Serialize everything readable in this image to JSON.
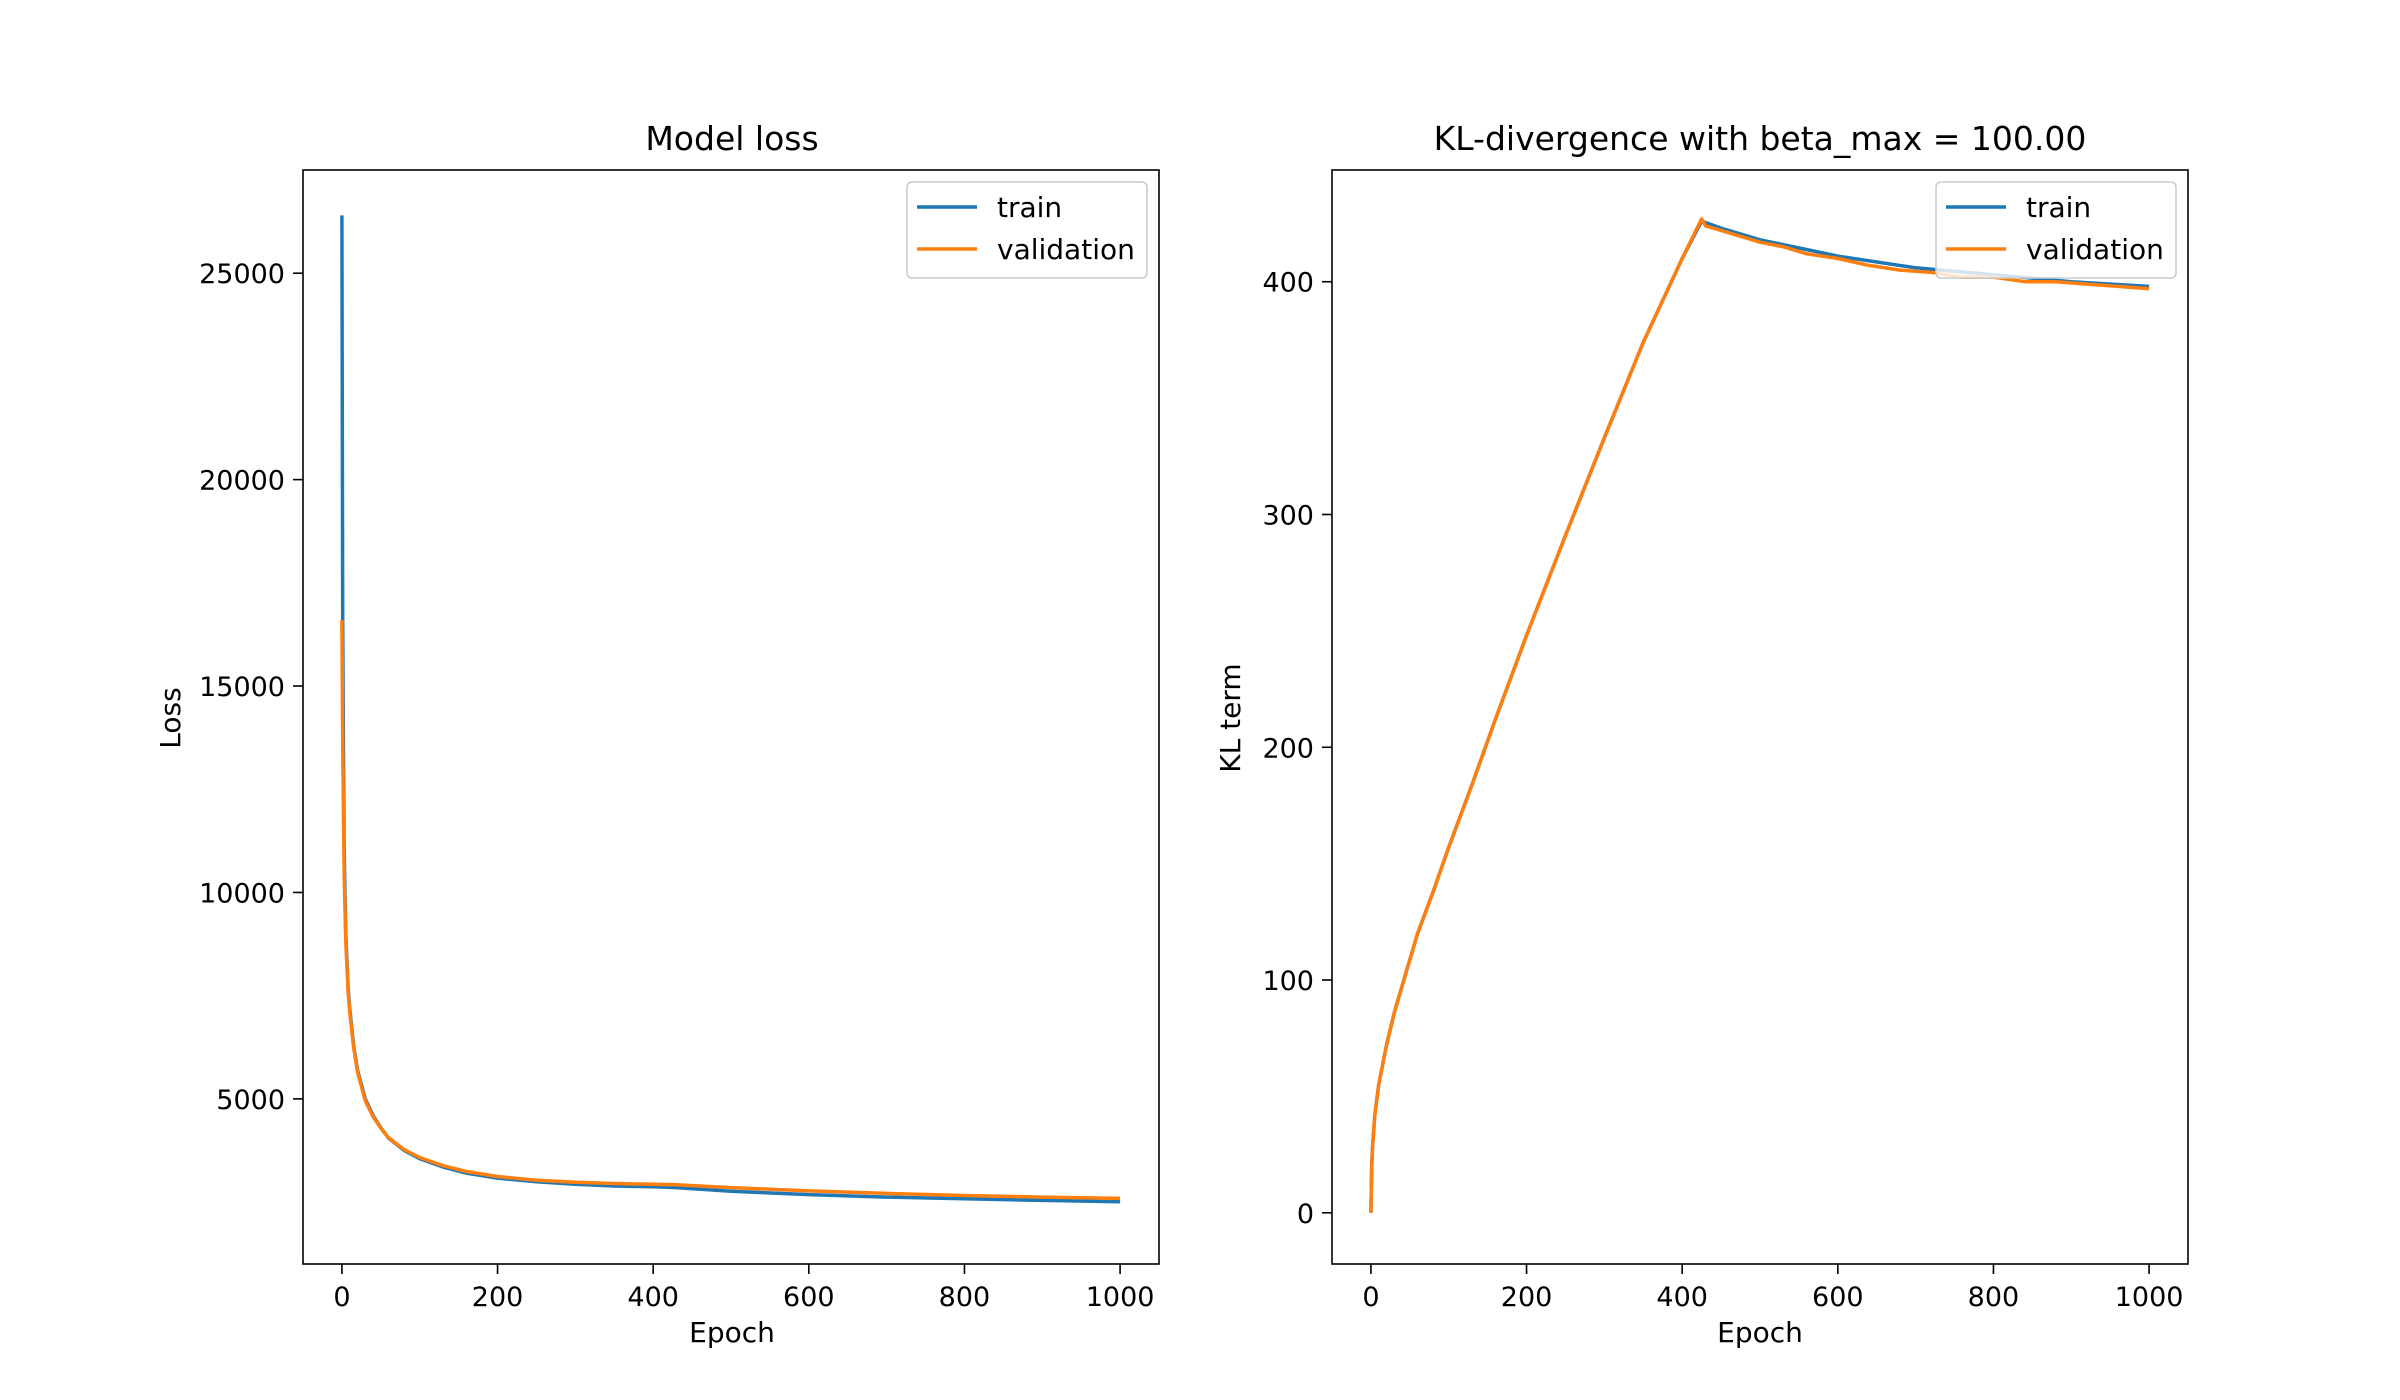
{
  "chart_data": [
    {
      "type": "line",
      "title": "Model loss",
      "xlabel": "Epoch",
      "ylabel": "Loss",
      "xlim": [
        -50,
        1050
      ],
      "ylim": [
        1000,
        27500
      ],
      "xticks": [
        0,
        200,
        400,
        600,
        800,
        1000
      ],
      "yticks": [
        5000,
        10000,
        15000,
        20000,
        25000
      ],
      "legend": "top-right",
      "grid": false,
      "series": [
        {
          "name": "train",
          "color": "#1f77b4",
          "x": [
            0,
            1,
            2,
            3,
            5,
            8,
            10,
            15,
            20,
            30,
            40,
            50,
            60,
            80,
            100,
            130,
            160,
            200,
            250,
            300,
            350,
            400,
            430,
            500,
            600,
            700,
            800,
            900,
            1000
          ],
          "y": [
            26400,
            16600,
            13200,
            11000,
            9000,
            7700,
            7200,
            6300,
            5700,
            5000,
            4600,
            4300,
            4050,
            3750,
            3550,
            3350,
            3200,
            3080,
            2990,
            2930,
            2890,
            2870,
            2850,
            2760,
            2680,
            2620,
            2580,
            2540,
            2510
          ]
        },
        {
          "name": "validation",
          "color": "#ff7f0e",
          "x": [
            0,
            1,
            2,
            3,
            5,
            8,
            10,
            15,
            20,
            30,
            40,
            50,
            60,
            80,
            100,
            130,
            160,
            200,
            250,
            300,
            350,
            400,
            430,
            500,
            600,
            700,
            800,
            900,
            1000
          ],
          "y": [
            16600,
            13600,
            11800,
            10400,
            8800,
            7600,
            7100,
            6250,
            5650,
            4950,
            4570,
            4290,
            4060,
            3770,
            3580,
            3380,
            3240,
            3120,
            3030,
            2980,
            2950,
            2930,
            2920,
            2850,
            2770,
            2710,
            2660,
            2620,
            2590
          ]
        }
      ]
    },
    {
      "type": "line",
      "title": "KL-divergence with beta_max = 100.00",
      "xlabel": "Epoch",
      "ylabel": "KL term",
      "xlim": [
        -50,
        1050
      ],
      "ylim": [
        -22,
        448
      ],
      "xticks": [
        0,
        200,
        400,
        600,
        800,
        1000
      ],
      "yticks": [
        0,
        100,
        200,
        300,
        400
      ],
      "legend": "top-right",
      "grid": false,
      "series": [
        {
          "name": "train",
          "color": "#1f77b4",
          "x": [
            0,
            1,
            2,
            5,
            10,
            20,
            30,
            45,
            60,
            80,
            100,
            130,
            160,
            200,
            250,
            300,
            350,
            400,
            425,
            450,
            500,
            600,
            700,
            800,
            900,
            1000
          ],
          "y": [
            0,
            20,
            28,
            42,
            55,
            72,
            86,
            103,
            120,
            138,
            157,
            184,
            212,
            248,
            291,
            333,
            374,
            410,
            426,
            423,
            418,
            411,
            406,
            403,
            400,
            398
          ]
        },
        {
          "name": "validation",
          "color": "#ff7f0e",
          "x": [
            0,
            1,
            2,
            5,
            10,
            20,
            30,
            45,
            60,
            80,
            100,
            130,
            160,
            200,
            250,
            300,
            350,
            400,
            425,
            430,
            450,
            470,
            500,
            530,
            560,
            600,
            640,
            680,
            720,
            760,
            800,
            840,
            880,
            920,
            960,
            1000
          ],
          "y": [
            0,
            20,
            28,
            42,
            55,
            72,
            86,
            103,
            120,
            138,
            157,
            184,
            212,
            248,
            291,
            333,
            374,
            410,
            427,
            424,
            422,
            420,
            417,
            415,
            412,
            410,
            407,
            405,
            404,
            402,
            402,
            400,
            400,
            399,
            398,
            397
          ]
        }
      ]
    }
  ]
}
